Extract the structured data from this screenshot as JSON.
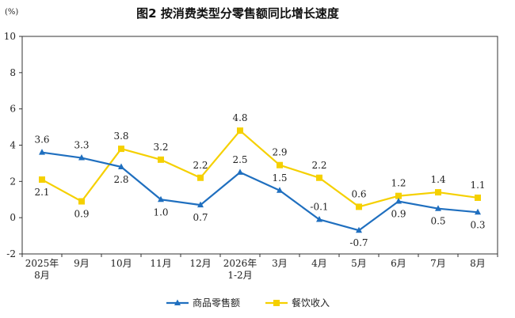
{
  "chart_data": {
    "type": "line",
    "title": "图2  按消费类型分零售额同比增长速度",
    "unit_label": "(%)",
    "ylim": [
      -2,
      10
    ],
    "yticks": [
      "10",
      "8",
      "6",
      "4",
      "2",
      "0",
      "-2"
    ],
    "categories": [
      [
        "2025年",
        "8月"
      ],
      [
        "9月"
      ],
      [
        "10月"
      ],
      [
        "11月"
      ],
      [
        "12月"
      ],
      [
        "2026年",
        "1-2月"
      ],
      [
        "3月"
      ],
      [
        "4月"
      ],
      [
        "5月"
      ],
      [
        "6月"
      ],
      [
        "7月"
      ],
      [
        "8月"
      ]
    ],
    "series": [
      {
        "name": "商品零售额",
        "color": "#1f6fbf",
        "marker": "triangle",
        "label_position": "mixed",
        "values": [
          3.6,
          3.3,
          2.8,
          1.0,
          0.7,
          2.5,
          1.5,
          -0.1,
          -0.7,
          0.9,
          0.5,
          0.3
        ],
        "labels": [
          "3.6",
          "3.3",
          "2.8",
          "1.0",
          "0.7",
          "2.5",
          "1.5",
          "-0.1",
          "-0.7",
          "0.9",
          "0.5",
          "0.3"
        ]
      },
      {
        "name": "餐饮收入",
        "color": "#f5d000",
        "marker": "square",
        "values": [
          2.1,
          0.9,
          3.8,
          3.2,
          2.2,
          4.8,
          2.9,
          2.2,
          0.6,
          1.2,
          1.4,
          1.1
        ],
        "labels": [
          "2.1",
          "0.9",
          "3.8",
          "3.2",
          "2.2",
          "4.8",
          "2.9",
          "2.2",
          "0.6",
          "1.2",
          "1.4",
          "1.1"
        ]
      }
    ],
    "legend_position": "bottom-center",
    "grid": false
  }
}
